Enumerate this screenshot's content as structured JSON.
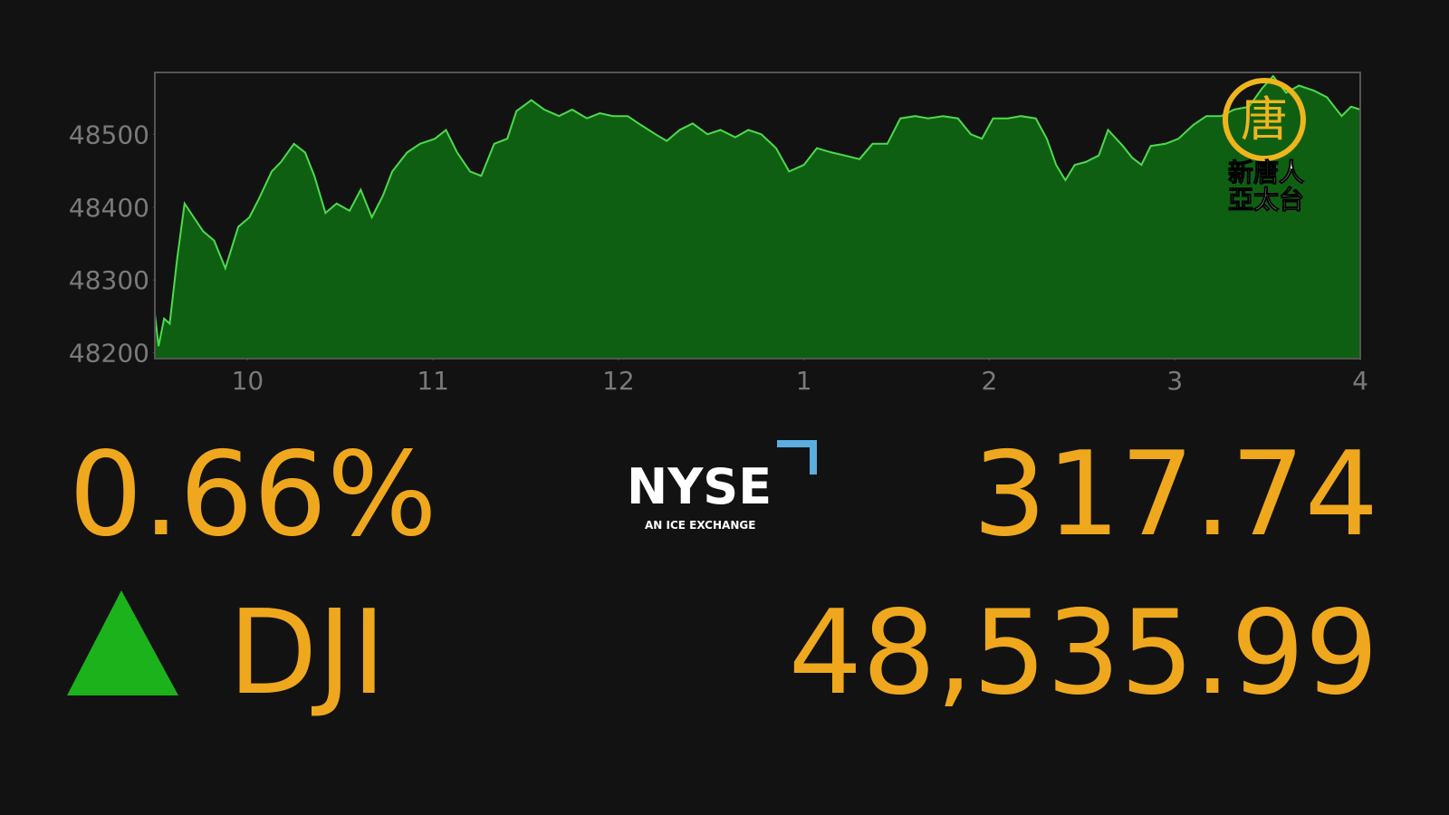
{
  "chart_data": {
    "type": "area",
    "x": [
      9.5,
      9.52,
      9.55,
      9.58,
      9.62,
      9.66,
      9.71,
      9.76,
      9.82,
      9.88,
      9.95,
      10.01,
      10.06,
      10.13,
      10.18,
      10.25,
      10.31,
      10.36,
      10.42,
      10.48,
      10.55,
      10.61,
      10.67,
      10.73,
      10.78,
      10.86,
      10.93,
      11.01,
      11.07,
      11.13,
      11.2,
      11.26,
      11.33,
      11.4,
      11.45,
      11.53,
      11.6,
      11.68,
      11.75,
      11.83,
      11.9,
      11.97,
      12.05,
      12.12,
      12.2,
      12.26,
      12.33,
      12.4,
      12.48,
      12.55,
      12.63,
      12.7,
      12.77,
      12.85,
      12.92,
      13.0,
      13.07,
      13.15,
      13.22,
      13.3,
      13.37,
      13.45,
      13.52,
      13.6,
      13.67,
      13.75,
      13.83,
      13.9,
      13.96,
      14.02,
      14.1,
      14.17,
      14.25,
      14.31,
      14.36,
      14.41,
      14.46,
      14.52,
      14.59,
      14.64,
      14.72,
      14.77,
      14.82,
      14.87,
      14.95,
      15.02,
      15.1,
      15.17,
      15.25,
      15.32,
      15.4,
      15.47,
      15.53,
      15.6,
      15.67,
      15.75,
      15.82,
      15.9,
      15.95,
      16.0
    ],
    "series": [
      {
        "color": "#4cdb4c",
        "fill": "#0f5f12",
        "values": [
          48253,
          48209,
          48247,
          48240,
          48329,
          48405,
          48386,
          48367,
          48354,
          48316,
          48373,
          48386,
          48411,
          48449,
          48462,
          48487,
          48475,
          48443,
          48392,
          48405,
          48395,
          48424,
          48386,
          48416,
          48449,
          48475,
          48487,
          48494,
          48506,
          48475,
          48449,
          48443,
          48487,
          48494,
          48532,
          48547,
          48534,
          48525,
          48534,
          48522,
          48529,
          48525,
          48525,
          48513,
          48500,
          48491,
          48506,
          48515,
          48500,
          48506,
          48496,
          48506,
          48500,
          48481,
          48449,
          48458,
          48481,
          48475,
          48471,
          48466,
          48487,
          48487,
          48522,
          48525,
          48522,
          48525,
          48522,
          48500,
          48494,
          48522,
          48522,
          48525,
          48522,
          48494,
          48458,
          48437,
          48458,
          48462,
          48471,
          48506,
          48484,
          48468,
          48458,
          48484,
          48487,
          48494,
          48513,
          48525,
          48525,
          48534,
          48538,
          48563,
          48580,
          48557,
          48567,
          48560,
          48551,
          48525,
          48538,
          48534
        ]
      }
    ],
    "xlim": [
      9.5,
      16
    ],
    "xticks": [
      10,
      11,
      12,
      {
        "value": 13,
        "label": "1"
      },
      {
        "value": 14,
        "label": "2"
      },
      {
        "value": 15,
        "label": "3"
      },
      {
        "value": 16,
        "label": "4"
      }
    ],
    "ylim": [
      48192,
      48585
    ],
    "yticks": [
      48200,
      48300,
      48400,
      48500
    ]
  },
  "ticker": {
    "change_percent": "0.66%",
    "change_points": "317.74",
    "symbol": "DJI",
    "price": "48,535.99"
  },
  "logo": {
    "name": "NYSE",
    "tagline": "AN ICE EXCHANGE"
  },
  "watermark": {
    "emblem": "唐",
    "line1": "新唐人",
    "line2": "亞太台"
  }
}
